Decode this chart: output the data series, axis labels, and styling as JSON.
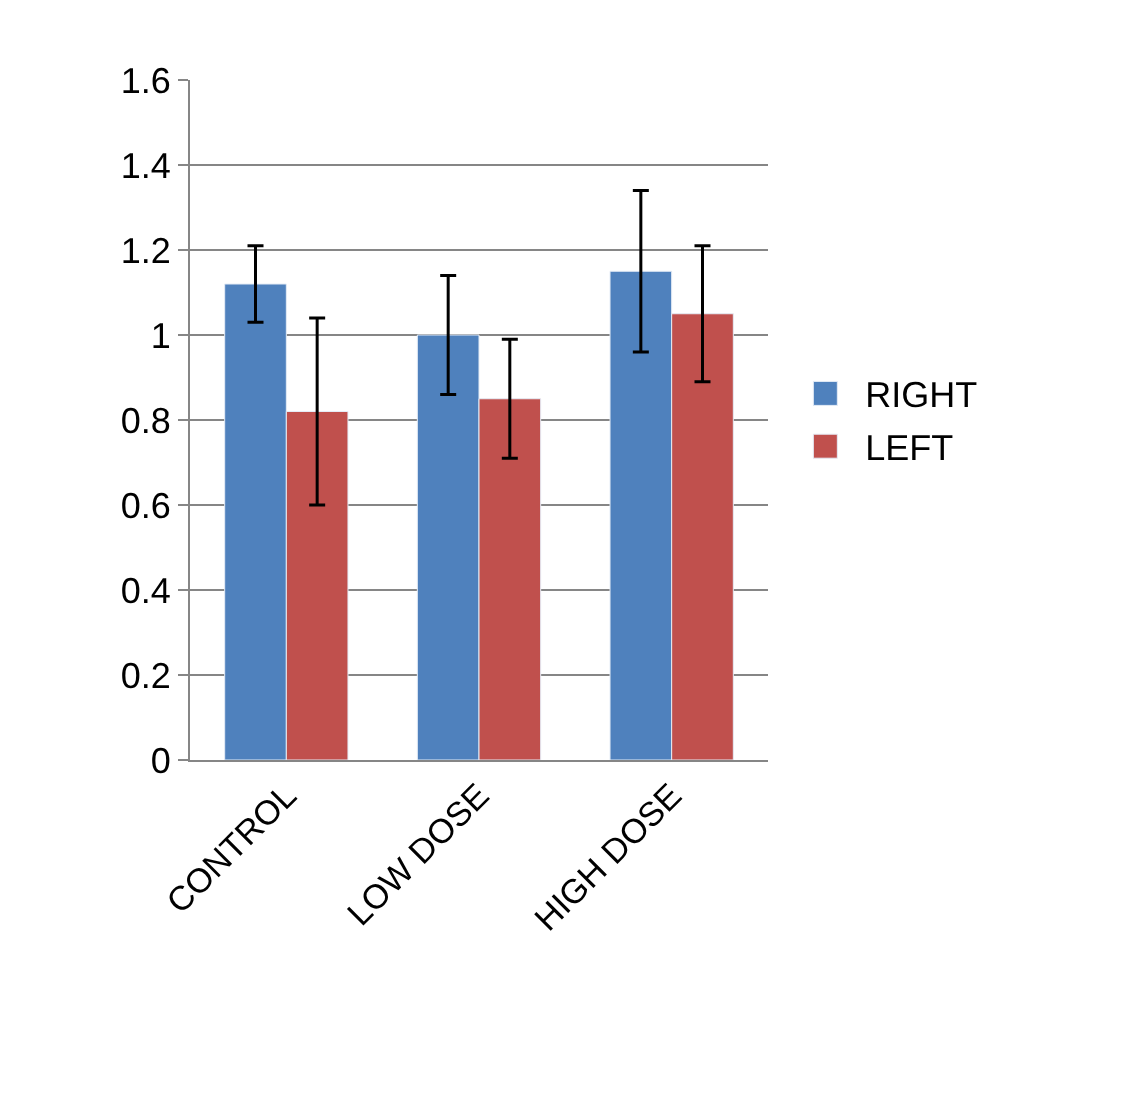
{
  "chart_data": {
    "type": "bar",
    "categories": [
      "CONTROL",
      "LOW DOSE",
      "HIGH DOSE"
    ],
    "series": [
      {
        "name": "RIGHT",
        "color": "#4f81bd",
        "values": [
          1.12,
          1.0,
          1.15
        ],
        "errors": [
          0.09,
          0.14,
          0.19
        ]
      },
      {
        "name": "LEFT",
        "color": "#c0504d",
        "values": [
          0.82,
          0.85,
          1.05
        ],
        "errors": [
          0.22,
          0.14,
          0.16
        ]
      }
    ],
    "ylim": [
      0,
      1.6
    ],
    "yticks": [
      0,
      0.2,
      0.4,
      0.6,
      0.8,
      1,
      1.2,
      1.4,
      1.6
    ],
    "grid": "y",
    "legend": "right"
  }
}
